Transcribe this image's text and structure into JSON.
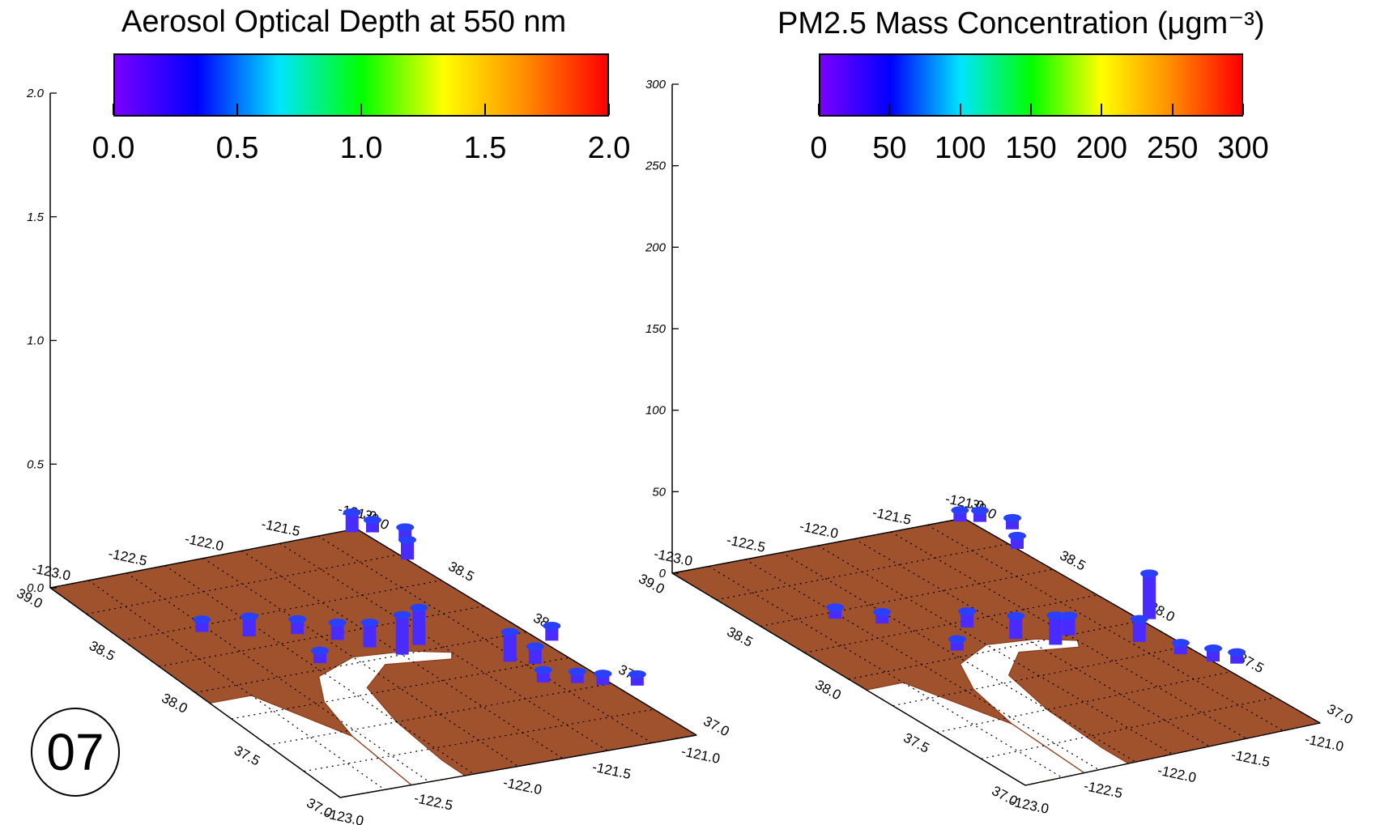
{
  "frame_label": "07",
  "colors": {
    "surface": "#a0522d",
    "surface_line": "#8b3a1a",
    "water": "#ffffff",
    "marker": "#4a2bff",
    "marker_dark": "#2a40ff",
    "colormap": [
      "#7a00ff",
      "#0000ff",
      "#00e5ff",
      "#00ff00",
      "#ffff00",
      "#ff8c00",
      "#ff0000"
    ]
  },
  "chart_data": [
    {
      "type": "3d-bar-map",
      "title": "Aerosol Optical Depth at 550 nm",
      "colorbar": {
        "range": [
          0.0,
          2.0
        ],
        "tick_labels": [
          "0.0",
          "0.5",
          "1.0",
          "1.5",
          "2.0"
        ]
      },
      "z_axis": {
        "range": [
          0.0,
          2.0
        ],
        "tick_labels": [
          "2.0",
          "1.5",
          "1.0",
          "0.5",
          "0.0"
        ]
      },
      "lon_top_labels": [
        "-123.0",
        "-122.5",
        "-122.0",
        "-121.5",
        "-121.0"
      ],
      "lat_left_labels": [
        "39.0",
        "38.5",
        "38.0",
        "37.5",
        "37.0"
      ],
      "lat_right_labels": [
        "39.0",
        "38.5",
        "38.0",
        "37.5",
        "37.0"
      ],
      "lon_bottom_labels": [
        "-123.0",
        "-122.5",
        "-122.0",
        "-121.5",
        "-121.0"
      ],
      "stations": [
        {
          "lon": -121.05,
          "lat": 38.98,
          "value": 0.08
        },
        {
          "lon": -120.95,
          "lat": 38.95,
          "value": 0.05
        },
        {
          "lon": -120.85,
          "lat": 38.85,
          "value": 0.05
        },
        {
          "lon": -121.0,
          "lat": 38.7,
          "value": 0.08
        },
        {
          "lon": -122.55,
          "lat": 38.45,
          "value": 0.05
        },
        {
          "lon": -122.35,
          "lat": 38.35,
          "value": 0.08
        },
        {
          "lon": -122.1,
          "lat": 38.3,
          "value": 0.06
        },
        {
          "lon": -121.95,
          "lat": 38.2,
          "value": 0.07
        },
        {
          "lon": -121.85,
          "lat": 38.1,
          "value": 0.1
        },
        {
          "lon": -121.75,
          "lat": 38.0,
          "value": 0.16
        },
        {
          "lon": -121.6,
          "lat": 38.05,
          "value": 0.15
        },
        {
          "lon": -122.2,
          "lat": 38.05,
          "value": 0.05
        },
        {
          "lon": -121.3,
          "lat": 37.8,
          "value": 0.12
        },
        {
          "lon": -121.2,
          "lat": 37.75,
          "value": 0.07
        },
        {
          "lon": -121.3,
          "lat": 37.6,
          "value": 0.05
        },
        {
          "lon": -121.15,
          "lat": 37.55,
          "value": 0.04
        },
        {
          "lon": -121.05,
          "lat": 37.5,
          "value": 0.04
        },
        {
          "lon": -120.9,
          "lat": 37.45,
          "value": 0.03
        },
        {
          "lon": -120.95,
          "lat": 37.9,
          "value": 0.06
        }
      ]
    },
    {
      "type": "3d-bar-map",
      "title": "PM2.5 Mass Concentration (μgm⁻³)",
      "colorbar": {
        "range": [
          0,
          300
        ],
        "tick_labels": [
          "0",
          "50",
          "100",
          "150",
          "200",
          "250",
          "300"
        ]
      },
      "z_axis": {
        "range": [
          0,
          300
        ],
        "tick_labels": [
          "300",
          "250",
          "200",
          "150",
          "100",
          "50",
          "0"
        ]
      },
      "lon_top_labels": [
        "-123.0",
        "-122.5",
        "-122.0",
        "-121.5",
        "-121.0"
      ],
      "lat_left_labels": [
        "39.0",
        "38.5",
        "38.0",
        "37.5",
        "37.0"
      ],
      "lat_right_labels": [
        "39.0",
        "38.5",
        "38.0",
        "37.5",
        "37.0"
      ],
      "lon_bottom_labels": [
        "-123.0",
        "-122.5",
        "-122.0",
        "-121.5",
        "-121.0"
      ],
      "stations": [
        {
          "lon": -121.05,
          "lat": 38.98,
          "value": 5
        },
        {
          "lon": -120.95,
          "lat": 38.95,
          "value": 5
        },
        {
          "lon": -120.85,
          "lat": 38.85,
          "value": 6
        },
        {
          "lon": -121.0,
          "lat": 38.7,
          "value": 8
        },
        {
          "lon": -122.55,
          "lat": 38.45,
          "value": 6
        },
        {
          "lon": -122.35,
          "lat": 38.35,
          "value": 7
        },
        {
          "lon": -122.2,
          "lat": 38.05,
          "value": 6
        },
        {
          "lon": -121.95,
          "lat": 38.2,
          "value": 10
        },
        {
          "lon": -121.8,
          "lat": 38.05,
          "value": 14
        },
        {
          "lon": -121.65,
          "lat": 37.95,
          "value": 18
        },
        {
          "lon": -121.5,
          "lat": 38.0,
          "value": 12
        },
        {
          "lon": -121.2,
          "lat": 37.85,
          "value": 14
        },
        {
          "lon": -121.1,
          "lat": 37.7,
          "value": 5
        },
        {
          "lon": -121.0,
          "lat": 37.6,
          "value": 8
        },
        {
          "lon": -120.9,
          "lat": 37.55,
          "value": 7
        },
        {
          "lon": -120.95,
          "lat": 38.0,
          "value": 28
        }
      ]
    }
  ]
}
